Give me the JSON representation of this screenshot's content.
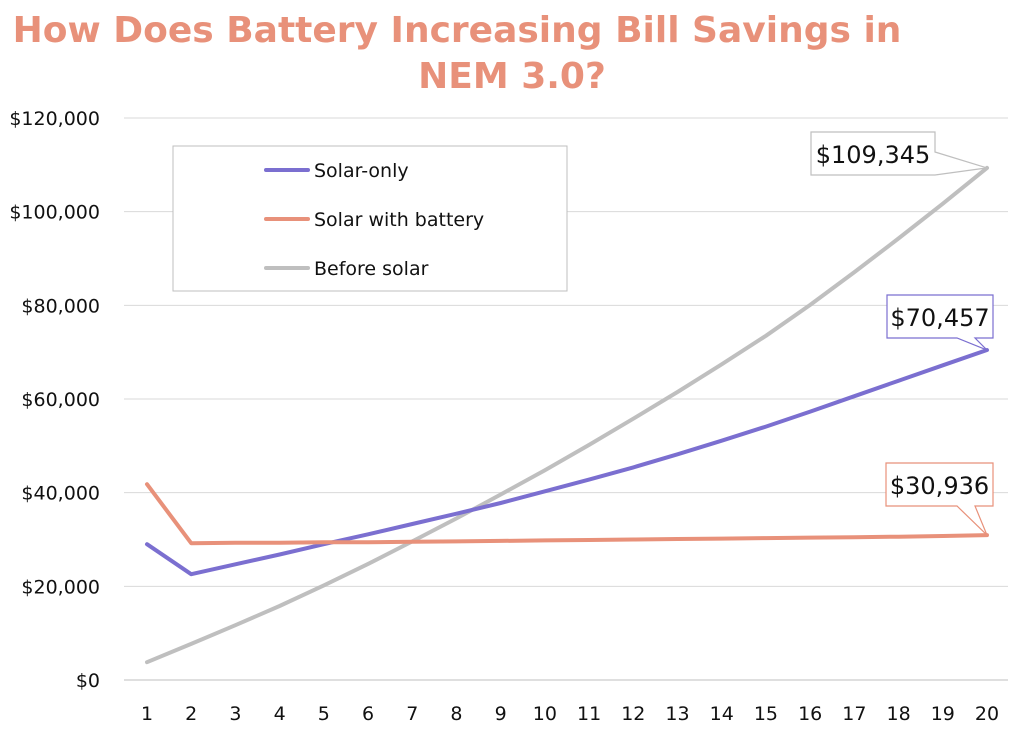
{
  "chart_data": {
    "type": "line",
    "title_lines": [
      "How Does Battery Increasing Bill Savings in",
      "NEM 3.0?"
    ],
    "categories": [
      "1",
      "2",
      "3",
      "4",
      "5",
      "6",
      "7",
      "8",
      "9",
      "10",
      "11",
      "12",
      "13",
      "14",
      "15",
      "16",
      "17",
      "18",
      "19",
      "20"
    ],
    "ylim": [
      0,
      120000
    ],
    "yticks": [
      0,
      20000,
      40000,
      60000,
      80000,
      100000,
      120000
    ],
    "ytick_labels": [
      "$0",
      "$20,000",
      "$40,000",
      "$60,000",
      "$80,000",
      "$100,000",
      "$120,000"
    ],
    "grid": true,
    "legend_position": "top-left",
    "series": [
      {
        "name": "Solar-only",
        "color": "#7B6FD0",
        "values": [
          29000,
          22600,
          24700,
          26800,
          29000,
          31100,
          33300,
          35500,
          37800,
          40300,
          42800,
          45400,
          48200,
          51100,
          54100,
          57300,
          60600,
          63900,
          67200,
          70457
        ],
        "callout": "$70,457"
      },
      {
        "name": "Solar with battery",
        "color": "#E8917A",
        "values": [
          41800,
          29200,
          29300,
          29300,
          29400,
          29400,
          29500,
          29600,
          29700,
          29800,
          29900,
          30000,
          30100,
          30200,
          30300,
          30400,
          30500,
          30600,
          30750,
          30936
        ],
        "callout": "$30,936"
      },
      {
        "name": "Before solar",
        "color": "#BFBFBF",
        "values": [
          3800,
          7700,
          11700,
          15800,
          20200,
          24800,
          29600,
          34500,
          39600,
          44800,
          50200,
          55800,
          61500,
          67400,
          73500,
          80100,
          87100,
          94300,
          101700,
          109345
        ],
        "callout": "$109,345"
      }
    ]
  }
}
